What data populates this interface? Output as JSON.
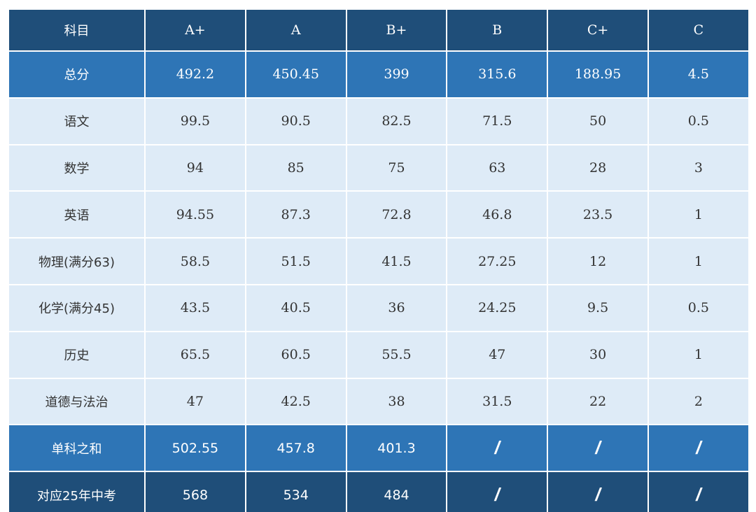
{
  "table": {
    "header": [
      "科目",
      "A+",
      "A",
      "B+",
      "B",
      "C+",
      "C"
    ],
    "total": {
      "label": "总分",
      "values": [
        "492.2",
        "450.45",
        "399",
        "315.6",
        "188.95",
        "4.5"
      ]
    },
    "rows": [
      {
        "label": "语文",
        "values": [
          "99.5",
          "90.5",
          "82.5",
          "71.5",
          "50",
          "0.5"
        ]
      },
      {
        "label": "数学",
        "values": [
          "94",
          "85",
          "75",
          "63",
          "28",
          "3"
        ]
      },
      {
        "label": "英语",
        "values": [
          "94.55",
          "87.3",
          "72.8",
          "46.8",
          "23.5",
          "1"
        ]
      },
      {
        "label": "物理(满分63)",
        "values": [
          "58.5",
          "51.5",
          "41.5",
          "27.25",
          "12",
          "1"
        ]
      },
      {
        "label": "化学(满分45)",
        "values": [
          "43.5",
          "40.5",
          "36",
          "24.25",
          "9.5",
          "0.5"
        ]
      },
      {
        "label": "历史",
        "values": [
          "65.5",
          "60.5",
          "55.5",
          "47",
          "30",
          "1"
        ]
      },
      {
        "label": "道德与法治",
        "values": [
          "47",
          "42.5",
          "38",
          "31.5",
          "22",
          "2"
        ]
      }
    ],
    "sum": {
      "label": "单科之和",
      "values": [
        "502.55",
        "457.8",
        "401.3",
        "/",
        "/",
        "/"
      ]
    },
    "exam": {
      "label": "对应25年中考",
      "values": [
        "568",
        "534",
        "484",
        "/",
        "/",
        "/"
      ]
    }
  },
  "colors": {
    "header_bg": "#1f4e79",
    "total_bg": "#2e75b6",
    "body_bg": "#deebf7",
    "sum_bg": "#2e75b6",
    "exam_bg": "#1f4e79"
  }
}
